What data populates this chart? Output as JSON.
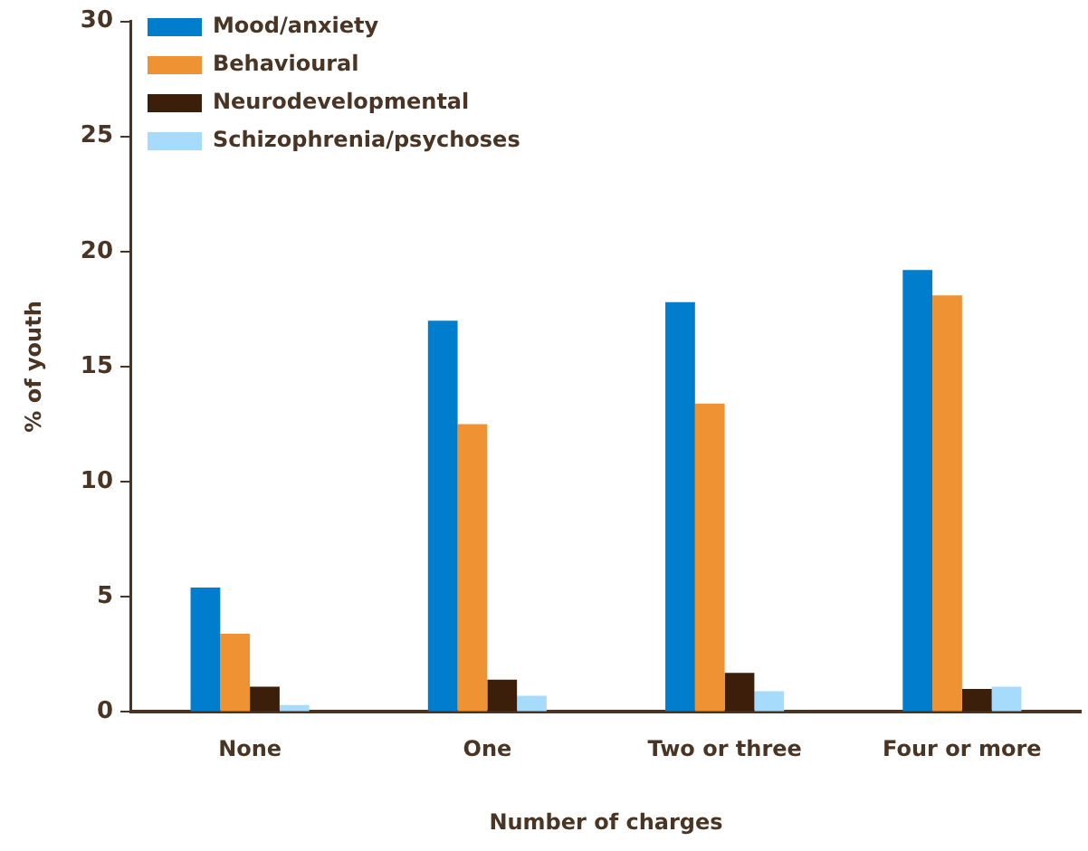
{
  "chart_data": {
    "type": "bar",
    "xlabel": "Number of charges",
    "ylabel": "% of youth",
    "categories": [
      "None",
      "One",
      "Two or three",
      "Four or more"
    ],
    "series": [
      {
        "name": "Mood/anxiety",
        "color": "#007dcc",
        "values": [
          5.4,
          17.0,
          17.8,
          19.2
        ]
      },
      {
        "name": "Behavioural",
        "color": "#ef9233",
        "values": [
          3.4,
          12.5,
          13.4,
          18.1
        ]
      },
      {
        "name": "Neurodevelopmental",
        "color": "#3b1f0a",
        "values": [
          1.1,
          1.4,
          1.7,
          1.0
        ]
      },
      {
        "name": "Schizophrenia/psychoses",
        "color": "#a6dbfb",
        "values": [
          0.3,
          0.7,
          0.9,
          1.1
        ]
      }
    ],
    "ylim": [
      0,
      30
    ],
    "yticks": [
      0,
      5,
      10,
      15,
      20,
      25,
      30
    ],
    "grid": false,
    "legend": "top left"
  }
}
